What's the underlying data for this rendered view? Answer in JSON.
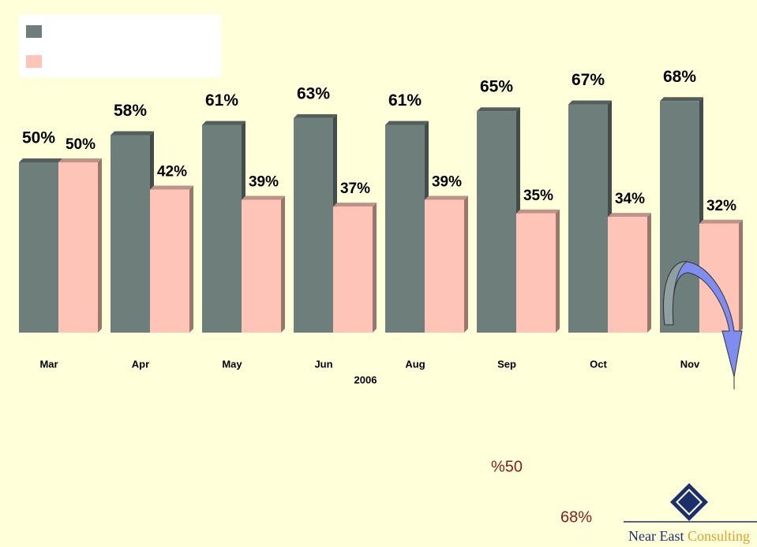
{
  "chart_data": {
    "type": "bar",
    "categories": [
      "Mar",
      "Apr",
      "May",
      "Jun",
      "Aug",
      "Sep",
      "Oct",
      "Nov"
    ],
    "x_label": "2006",
    "series": [
      {
        "color": "#6e7f7b",
        "values": [
          50,
          58,
          61,
          63,
          61,
          65,
          67,
          68
        ],
        "value_labels": [
          "50%",
          "58%",
          "61%",
          "63%",
          "61%",
          "65%",
          "67%",
          "68%"
        ]
      },
      {
        "color": "#ffc4b8",
        "values": [
          50,
          42,
          39,
          37,
          39,
          35,
          34,
          32
        ],
        "value_labels": [
          "50%",
          "42%",
          "39%",
          "37%",
          "39%",
          "35%",
          "34%",
          "32%"
        ]
      }
    ],
    "legend": "top-left",
    "annotations": [
      "%50",
      "68%"
    ]
  },
  "logo": {
    "text1": "Near East",
    "text2": "Consulting"
  }
}
